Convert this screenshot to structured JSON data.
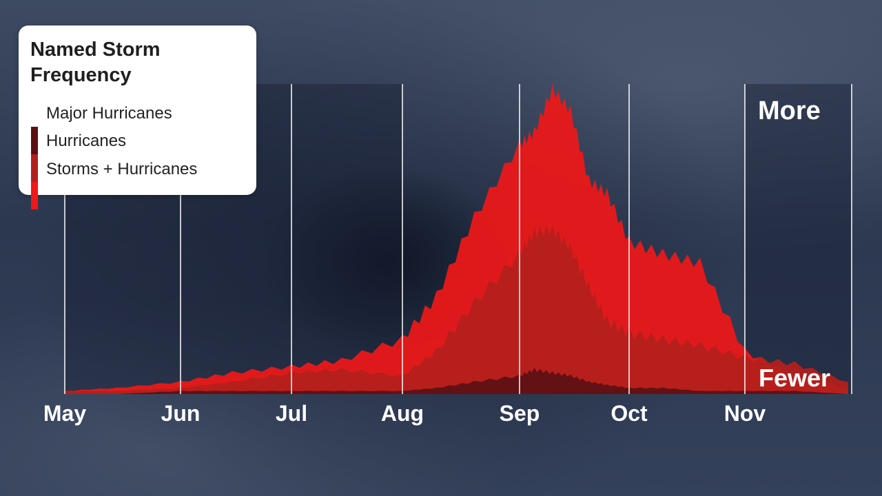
{
  "legend": {
    "title": "Named Storm Frequency",
    "items": [
      {
        "label": "Major Hurricanes",
        "color": "#5a1014"
      },
      {
        "label": "Hurricanes",
        "color": "#b3201c"
      },
      {
        "label": "Storms + Hurricanes",
        "color": "#f01818"
      }
    ]
  },
  "scale_labels": {
    "top": "More",
    "bottom": "Fewer"
  },
  "chart_data": {
    "type": "area",
    "title": "Named Storm Frequency",
    "x_unit": "day of season",
    "x_range": [
      "May 1",
      "Nov 30"
    ],
    "ylim": [
      0,
      100
    ],
    "y_ticks_shown": false,
    "month_labels": [
      "May",
      "Jun",
      "Jul",
      "Aug",
      "Sep",
      "Oct",
      "Nov"
    ],
    "grid": "vertical lines at month starts",
    "x": [
      "May 1",
      "May 15",
      "Jun 1",
      "Jun 15",
      "Jul 1",
      "Jul 15",
      "Aug 1",
      "Aug 10",
      "Aug 20",
      "Sep 1",
      "Sep 5",
      "Sep 10",
      "Sep 15",
      "Sep 20",
      "Sep 25",
      "Oct 1",
      "Oct 10",
      "Oct 20",
      "Nov 1",
      "Nov 15",
      "Nov 30"
    ],
    "series": [
      {
        "name": "Storms + Hurricanes",
        "color": "#f01818",
        "values": [
          1,
          2,
          4,
          7,
          9,
          11,
          18,
          32,
          58,
          82,
          86,
          100,
          93,
          70,
          66,
          50,
          46,
          43,
          14,
          6,
          2
        ]
      },
      {
        "name": "Hurricanes",
        "color": "#b3201c",
        "values": [
          1,
          1,
          2,
          4,
          7,
          8,
          6,
          14,
          30,
          46,
          53,
          54,
          48,
          35,
          24,
          20,
          18,
          16,
          12,
          10,
          4
        ]
      },
      {
        "name": "Major Hurricanes",
        "color": "#5a1014",
        "values": [
          0,
          0,
          1,
          1,
          1,
          1,
          1,
          2,
          4,
          6,
          8,
          7,
          6,
          4,
          3,
          2,
          2,
          1,
          1,
          1,
          0
        ]
      }
    ]
  }
}
